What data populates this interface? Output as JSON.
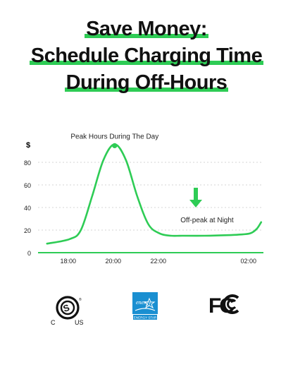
{
  "headline": {
    "lines": [
      "Save Money:",
      "Schedule Charging Time",
      "During Off-Hours"
    ]
  },
  "chart_data": {
    "type": "line",
    "ylabel": "$",
    "yticks": [
      0,
      20,
      40,
      60,
      80
    ],
    "xticks": [
      "18:00",
      "20:00",
      "22:00",
      "02:00"
    ],
    "x": [
      17,
      18,
      18.5,
      19,
      19.5,
      20,
      20.5,
      21,
      21.5,
      22,
      22.5,
      23,
      24,
      25,
      25.5,
      26,
      26.3,
      26.5
    ],
    "series": [
      {
        "values": [
          8,
          12,
          20,
          50,
          82,
          96,
          82,
          50,
          25,
          17,
          15,
          15,
          15,
          15.5,
          16,
          17,
          21,
          27
        ],
        "color": "#2ecc55"
      }
    ],
    "xlim": [
      16.6,
      26.6
    ],
    "ylim": [
      0,
      100
    ],
    "annotations": [
      {
        "text": "Peak Hours During The Day",
        "x": 20,
        "y": 96,
        "marker": "dot"
      },
      {
        "text": "Off-peak at Night",
        "x": 24,
        "y": 15,
        "marker": "down-arrow"
      }
    ],
    "grid": true
  },
  "logos": [
    {
      "name": "csa-certification",
      "marks": [
        "C",
        "US"
      ]
    },
    {
      "name": "energy-star",
      "marks": [
        "ENERGY STAR"
      ]
    },
    {
      "name": "fcc",
      "marks": [
        "FC"
      ]
    }
  ],
  "colors": {
    "accent": "#2ecc55",
    "energy_star_blue": "#1a8fd1",
    "text": "#111111"
  }
}
